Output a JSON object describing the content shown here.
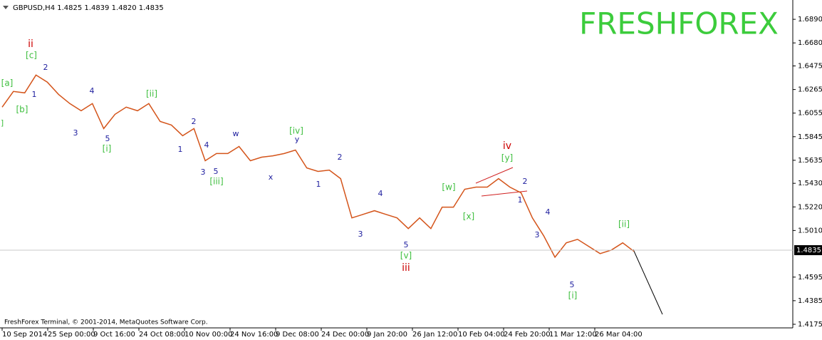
{
  "chart_data": {
    "type": "line",
    "header": "GBPUSD,H4  1.4825 1.4839 1.4820 1.4835",
    "watermark": "FRESHFOREX",
    "copyright": "FreshForex Terminal, © 2001-2014, MetaQuotes Software Corp.",
    "color": "#d4541a",
    "values": [
      1.6108,
      1.6248,
      1.6235,
      1.6394,
      1.6331,
      1.6222,
      1.614,
      1.6076,
      1.614,
      1.5917,
      1.6044,
      1.6108,
      1.6076,
      1.614,
      1.5981,
      1.5949,
      1.5854,
      1.5917,
      1.5631,
      1.5695,
      1.5695,
      1.5758,
      1.5631,
      1.5663,
      1.5675,
      1.5695,
      1.5726,
      1.5567,
      1.5536,
      1.5548,
      1.5472,
      1.5122,
      1.5154,
      1.5186,
      1.5154,
      1.5122,
      1.5027,
      1.5122,
      1.5027,
      1.5218,
      1.5218,
      1.5377,
      1.5396,
      1.5396,
      1.5472,
      1.5396,
      1.5345,
      1.5122,
      1.4963,
      1.4772,
      1.49,
      1.4931,
      1.4868,
      1.4804,
      1.4836,
      1.49,
      1.4824
    ],
    "current_price": 1.4835,
    "x_labels": [
      "10 Sep 2014",
      "25 Sep 00:00",
      "9 Oct 16:00",
      "24 Oct 08:00",
      "10 Nov 00:00",
      "24 Nov 16:00",
      "9 Dec 08:00",
      "24 Dec 00:00",
      "9 Jan 20:00",
      "26 Jan 12:00",
      "10 Feb 04:00",
      "24 Feb 20:00",
      "11 Mar 12:00",
      "26 Mar 04:00"
    ],
    "ylim": [
      1.4143,
      1.7062
    ],
    "yticks": [
      {
        "value": 1.689,
        "label": "1.6890"
      },
      {
        "value": 1.668,
        "label": "1.6680"
      },
      {
        "value": 1.6475,
        "label": "1.6475"
      },
      {
        "value": 1.6265,
        "label": "1.6265"
      },
      {
        "value": 1.6055,
        "label": "1.6055"
      },
      {
        "value": 1.5845,
        "label": "1.5845"
      },
      {
        "value": 1.5635,
        "label": "1.5635"
      },
      {
        "value": 1.543,
        "label": "1.5430"
      },
      {
        "value": 1.522,
        "label": "1.5220"
      },
      {
        "value": 1.501,
        "label": "1.5010"
      },
      {
        "value": 1.4595,
        "label": "1.4595"
      },
      {
        "value": 1.4385,
        "label": "1.4385"
      },
      {
        "value": 1.4175,
        "label": "1.4175"
      }
    ],
    "grid": false,
    "annotations": [
      {
        "text": "ii",
        "color": "#cc0000"
      },
      {
        "text": "[c]",
        "color": "#3fbf3f"
      },
      {
        "text": "[a]",
        "color": "#3fbf3f"
      },
      {
        "text": "[b]",
        "color": "#3fbf3f"
      },
      {
        "text": "]",
        "color": "#3fbf3f"
      },
      {
        "text": "1",
        "color": "#1f1f9f"
      },
      {
        "text": "2",
        "color": "#1f1f9f"
      },
      {
        "text": "3",
        "color": "#1f1f9f"
      },
      {
        "text": "4",
        "color": "#1f1f9f"
      },
      {
        "text": "5",
        "color": "#1f1f9f"
      },
      {
        "text": "[i]",
        "color": "#3fbf3f"
      },
      {
        "text": "[ii]",
        "color": "#3fbf3f"
      },
      {
        "text": "1",
        "color": "#1f1f9f"
      },
      {
        "text": "2",
        "color": "#1f1f9f"
      },
      {
        "text": "3",
        "color": "#1f1f9f"
      },
      {
        "text": "4",
        "color": "#1f1f9f"
      },
      {
        "text": "5",
        "color": "#1f1f9f"
      },
      {
        "text": "[iii]",
        "color": "#3fbf3f"
      },
      {
        "text": "w",
        "color": "#1f1f9f"
      },
      {
        "text": "x",
        "color": "#1f1f9f"
      },
      {
        "text": "y",
        "color": "#1f1f9f"
      },
      {
        "text": "[iv]",
        "color": "#3fbf3f"
      },
      {
        "text": "1",
        "color": "#1f1f9f"
      },
      {
        "text": "2",
        "color": "#1f1f9f"
      },
      {
        "text": "3",
        "color": "#1f1f9f"
      },
      {
        "text": "4",
        "color": "#1f1f9f"
      },
      {
        "text": "5",
        "color": "#1f1f9f"
      },
      {
        "text": "[v]",
        "color": "#3fbf3f"
      },
      {
        "text": "iii",
        "color": "#cc0000"
      },
      {
        "text": "[w]",
        "color": "#3fbf3f"
      },
      {
        "text": "[x]",
        "color": "#3fbf3f"
      },
      {
        "text": "iv",
        "color": "#cc0000"
      },
      {
        "text": "[y]",
        "color": "#3fbf3f"
      },
      {
        "text": "2",
        "color": "#1f1f9f"
      },
      {
        "text": "1",
        "color": "#1f1f9f"
      },
      {
        "text": "3",
        "color": "#1f1f9f"
      },
      {
        "text": "4",
        "color": "#1f1f9f"
      },
      {
        "text": "5",
        "color": "#1f1f9f"
      },
      {
        "text": "[i]",
        "color": "#3fbf3f"
      },
      {
        "text": "[ii]",
        "color": "#3fbf3f"
      }
    ]
  }
}
